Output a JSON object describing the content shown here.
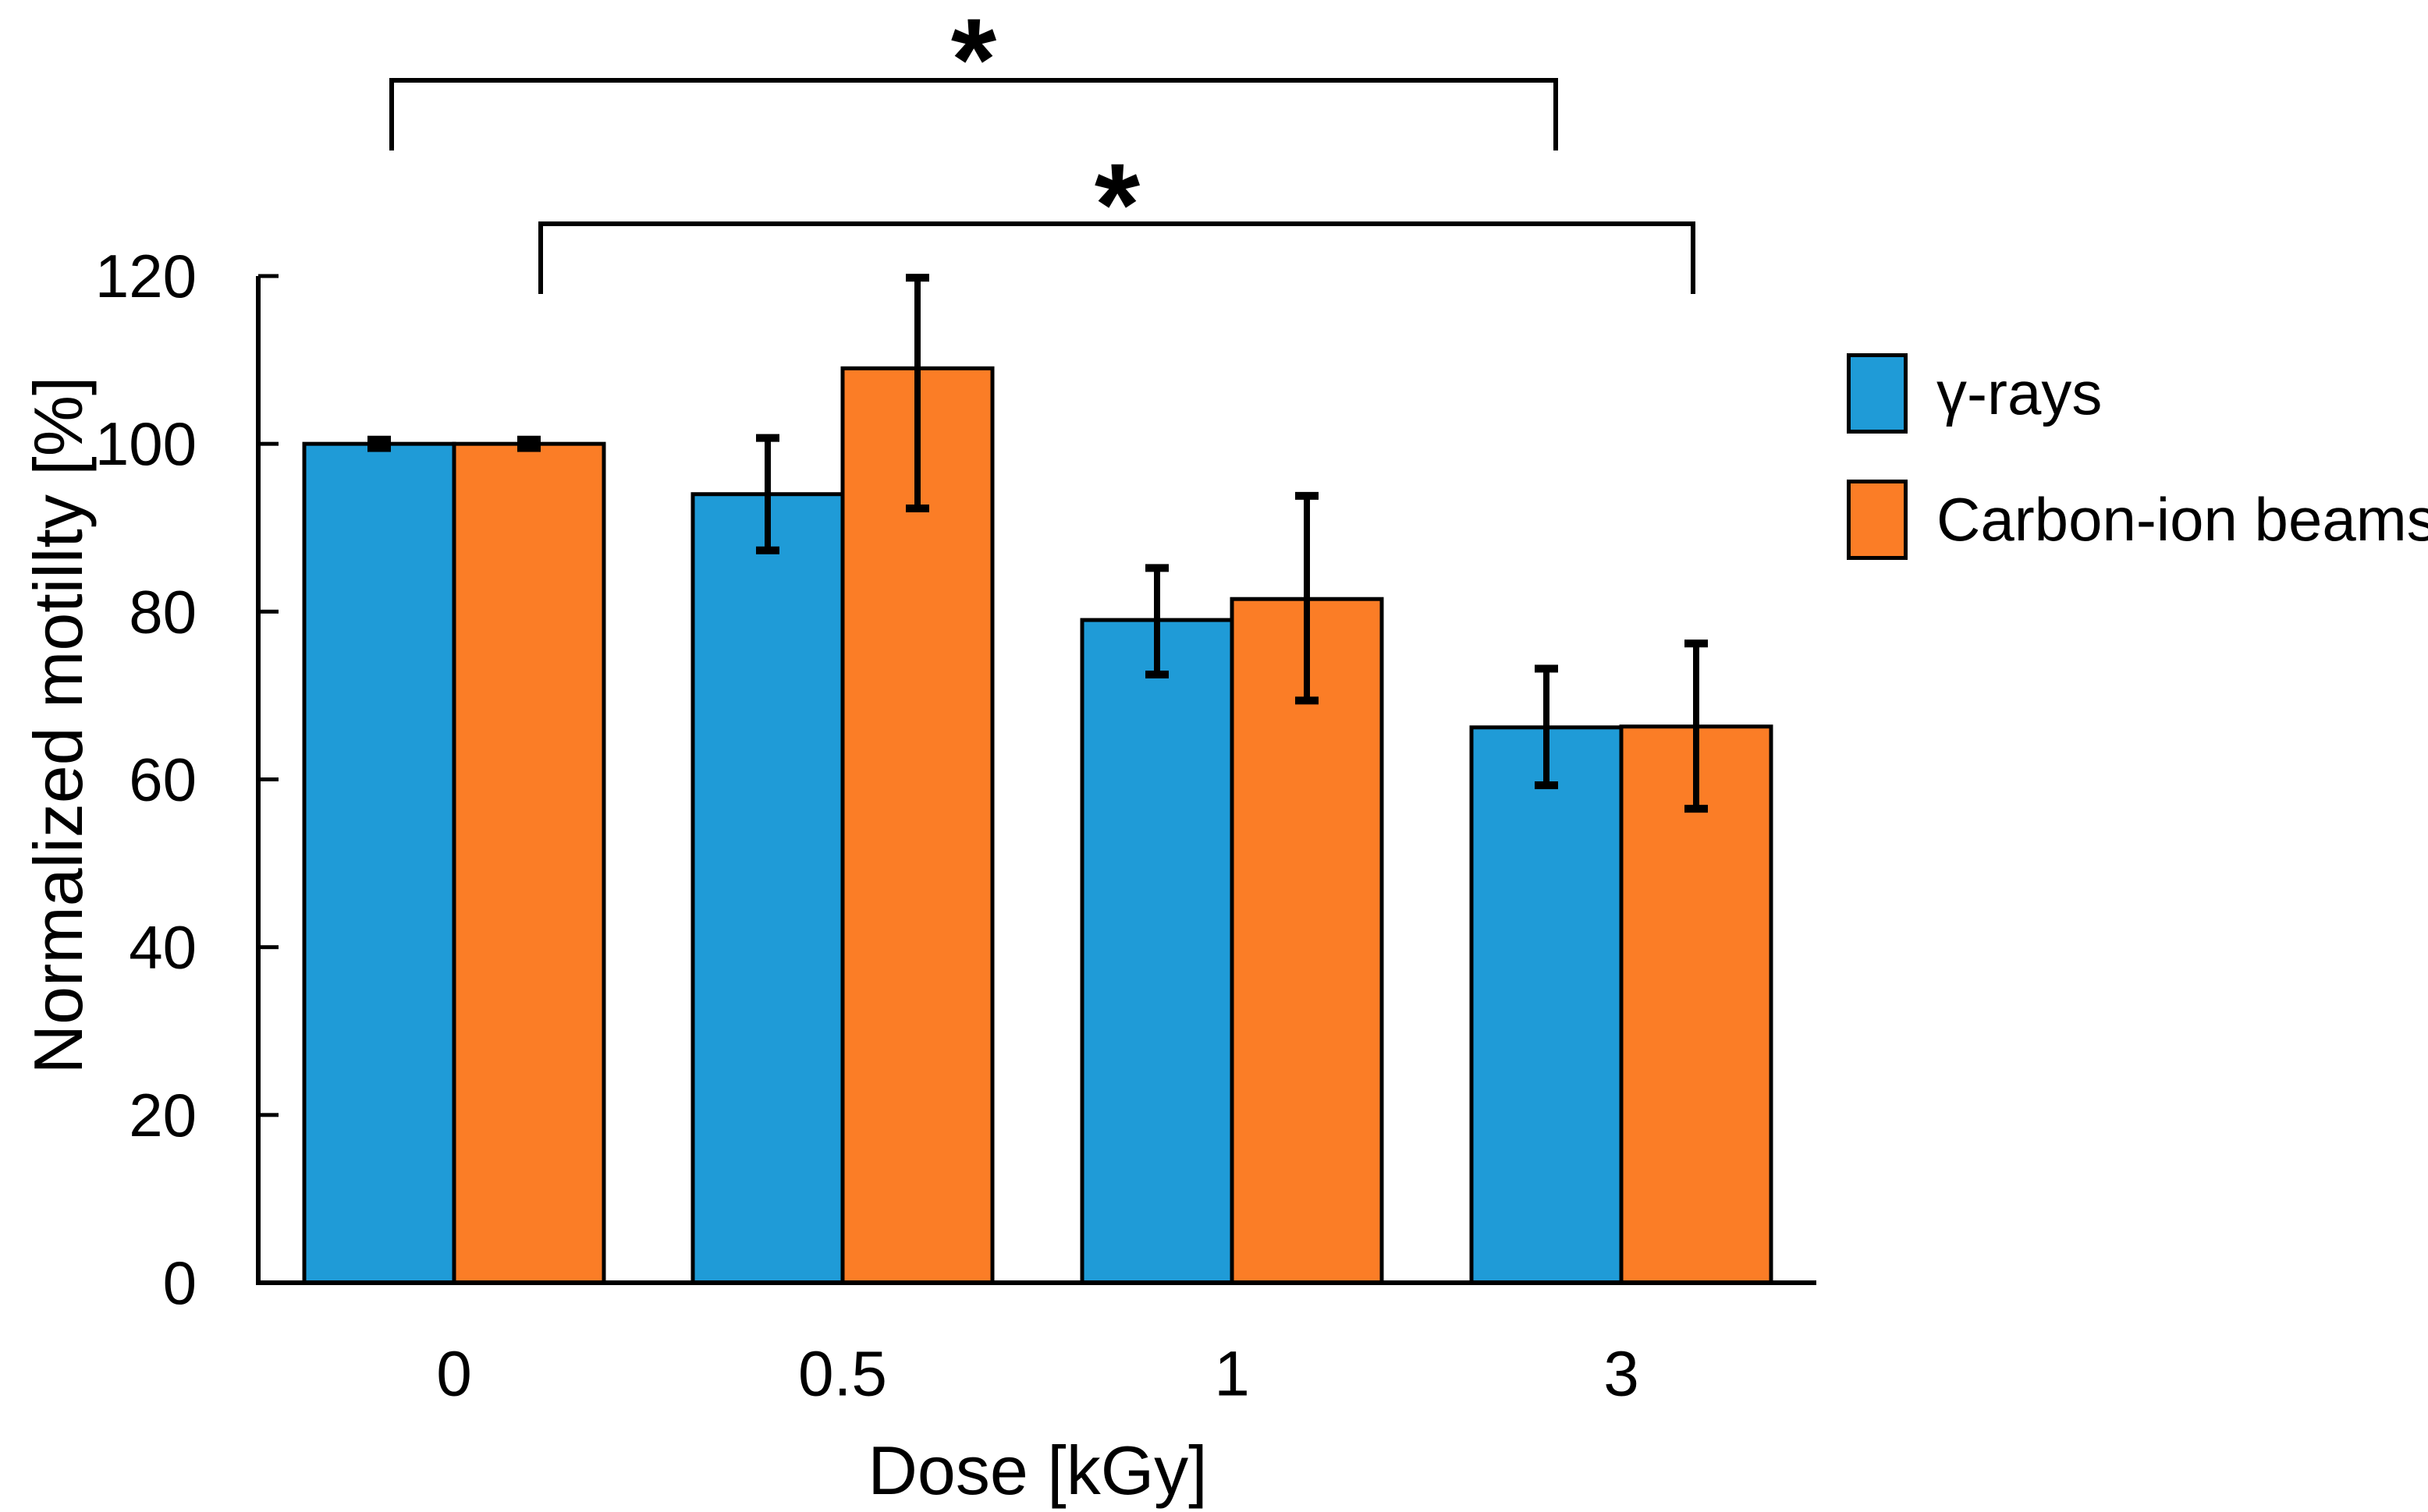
{
  "figure": {
    "background_color": "#ffffff"
  },
  "legend": {
    "items": [
      {
        "label": "γ-rays",
        "color": "#1F9BD7"
      },
      {
        "label": "Carbon-ion beams",
        "color": "#FB7D26"
      }
    ]
  },
  "chart_data": {
    "type": "bar",
    "title": "",
    "xlabel": "Dose [kGy]",
    "ylabel": "Normalized motillty [%]",
    "categories": [
      "0",
      "0.5",
      "1",
      "3"
    ],
    "ylim": [
      0,
      120
    ],
    "y_tick_step": 20,
    "grid": false,
    "legend_position": "right",
    "bar_edge_color": "#000000",
    "error_bar_color": "#000000",
    "series": [
      {
        "name": "γ-rays",
        "color": "#1F9BD7",
        "values": [
          100,
          94,
          79,
          66.2
        ],
        "error_low": [
          99.5,
          87.3,
          72.5,
          59.3
        ],
        "error_high": [
          100.5,
          100.7,
          85.2,
          73.2
        ]
      },
      {
        "name": "Carbon-ion beams",
        "color": "#FB7D26",
        "values": [
          100,
          109,
          81.5,
          66.3
        ],
        "error_low": [
          99.5,
          92.3,
          69.4,
          56.5
        ],
        "error_high": [
          100.5,
          119.8,
          93.8,
          76.2
        ]
      }
    ],
    "annotations": [
      {
        "type": "significance-bracket",
        "label": "*",
        "series": "γ-rays",
        "from_category": "0",
        "to_category": "3"
      },
      {
        "type": "significance-bracket",
        "label": "*",
        "series": "Carbon-ion beams",
        "from_category": "0",
        "to_category": "3"
      }
    ]
  }
}
